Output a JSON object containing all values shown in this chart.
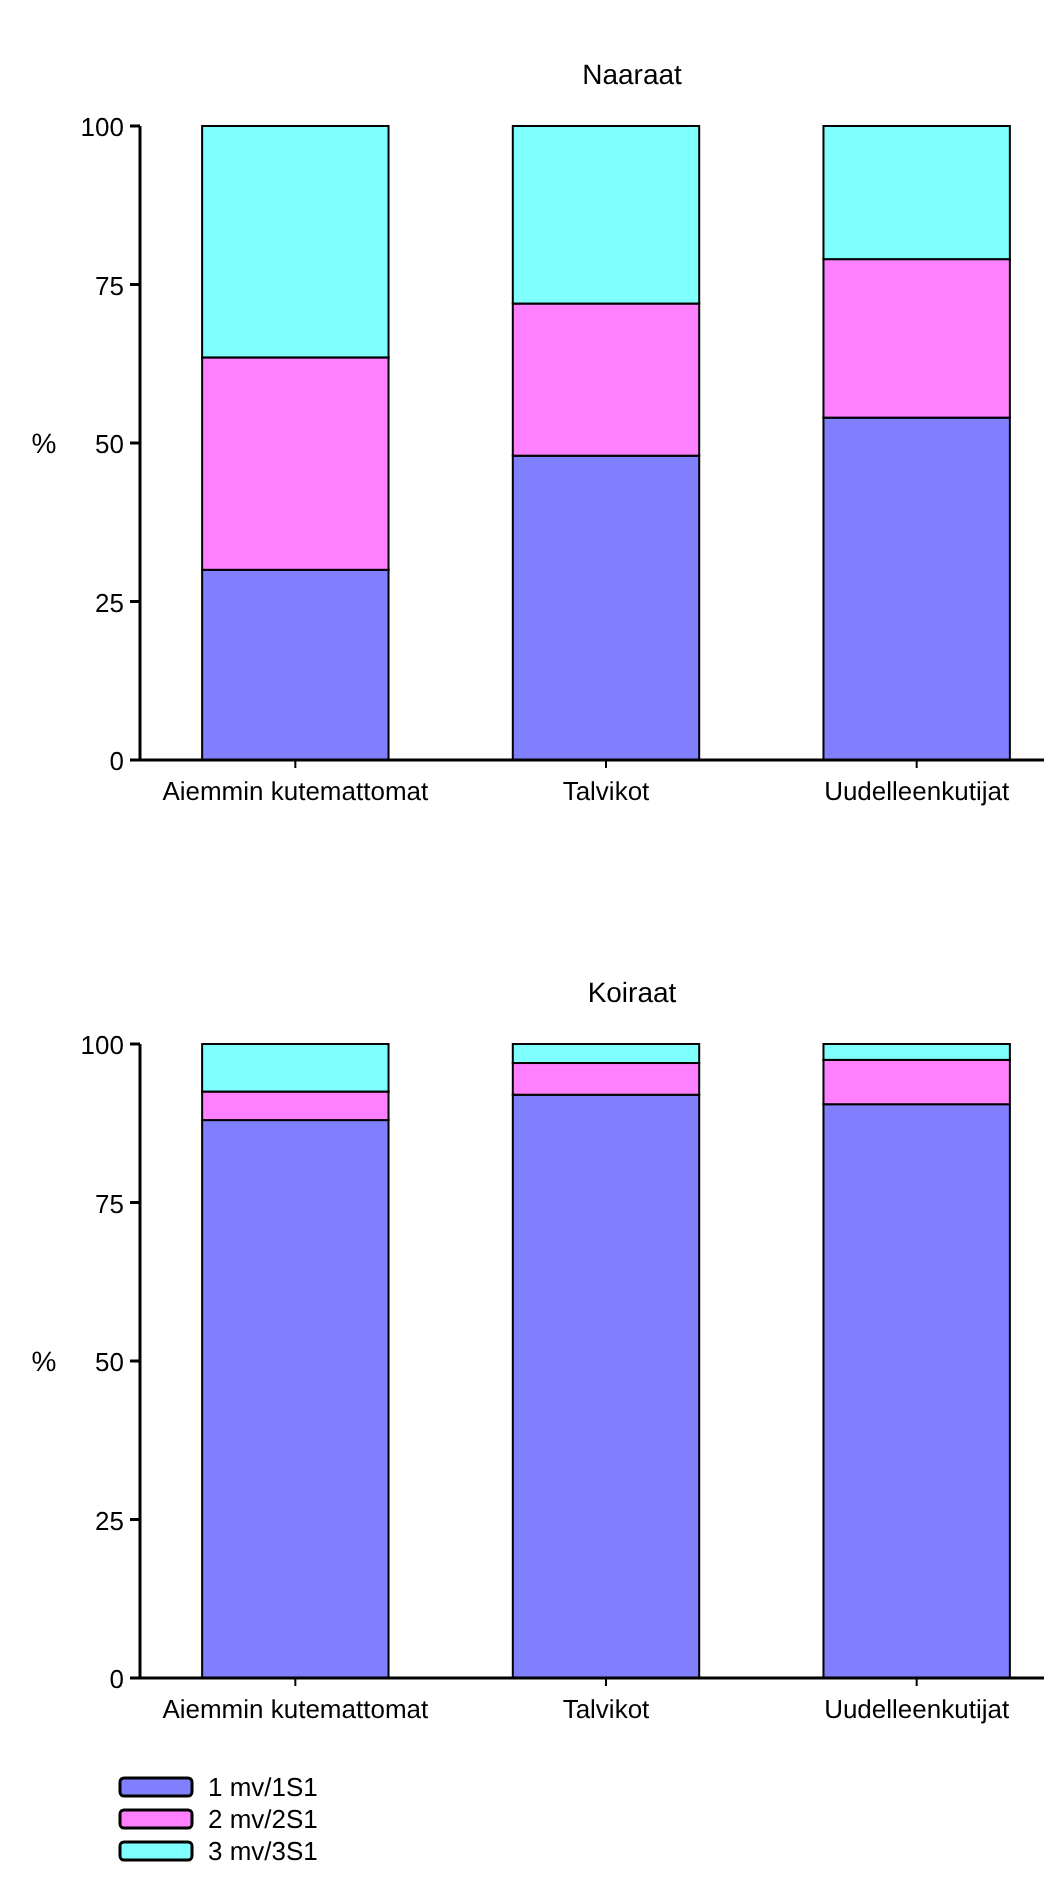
{
  "chart_data": [
    {
      "type": "bar",
      "title": "Naaraat",
      "ylabel": "%",
      "categories": [
        "Aiemmin kutemattomat",
        "Talvikot",
        "Uudelleenkutijat"
      ],
      "stacked": true,
      "ylim": [
        0,
        100
      ],
      "yticks": [
        0,
        25,
        50,
        75,
        100
      ],
      "grid": false,
      "legend": false,
      "series": [
        {
          "color": "#8080ff",
          "values": [
            30,
            48,
            54
          ]
        },
        {
          "color": "#ff80ff",
          "values": [
            33.5,
            24,
            25
          ]
        },
        {
          "color": "#80ffff",
          "values": [
            36.5,
            28,
            21
          ]
        }
      ]
    },
    {
      "type": "bar",
      "title": "Koiraat",
      "ylabel": "%",
      "categories": [
        "Aiemmin kutemattomat",
        "Talvikot",
        "Uudelleenkutijat"
      ],
      "stacked": true,
      "ylim": [
        0,
        100
      ],
      "yticks": [
        0,
        25,
        50,
        75,
        100
      ],
      "grid": false,
      "legend": "bottom left",
      "series": [
        {
          "name": "1 mv/1S1",
          "color": "#8080ff",
          "values": [
            88,
            92,
            90.5
          ]
        },
        {
          "name": "2 mv/2S1",
          "color": "#ff80ff",
          "values": [
            4.5,
            5,
            7
          ]
        },
        {
          "name": "3 mv/3S1",
          "color": "#80ffff",
          "values": [
            7.5,
            3,
            2.5
          ]
        }
      ]
    }
  ]
}
